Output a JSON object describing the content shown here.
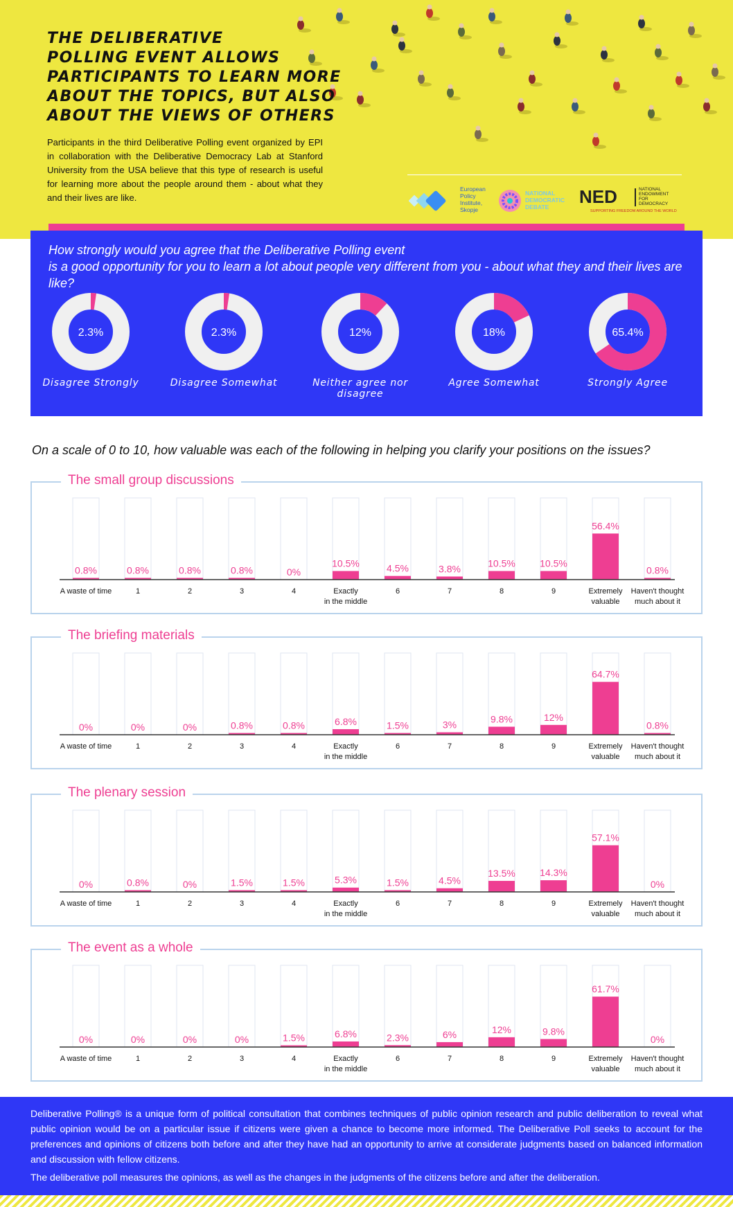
{
  "header": {
    "title_lines": [
      "THE DELIBERATIVE",
      "POLLING EVENT ALLOWS",
      "PARTICIPANTS TO LEARN MORE",
      "ABOUT THE TOPICS, BUT ALSO",
      "ABOUT THE VIEWS OF OTHERS"
    ],
    "intro": "Participants in the third Deliberative Polling event organized by EPI in collaboration with the Deliberative Democracy Lab at Stanford University from the USA believe that this type of research is useful for learning more about the people around them - about what they and their lives are like."
  },
  "logos": {
    "epi": "European\nPolicy\nInstitute,\nSkopje",
    "nd": "NATIONAL\nDEMOCRATIC\nDEBATE",
    "ned_mark": "NED",
    "ned_text": "NATIONAL\nENDOWMENT\nFOR\nDEMOCRACY",
    "ned_tagline": "SUPPORTING FREEDOM AROUND THE WORLD"
  },
  "colors": {
    "blue": "#2f37f6",
    "pink": "#ee3e92",
    "yellow": "#eee740",
    "light": "#f0f0f0"
  },
  "question1": {
    "title": "How strongly would you agree that the Deliberative Polling event\nis a good opportunity for you to learn a lot about people very different from you - about what they and their lives are like?",
    "items": [
      {
        "label": "Disagree Strongly",
        "display": "2.3%",
        "value": 2.3
      },
      {
        "label": "Disagree Somewhat",
        "display": "2.3%",
        "value": 2.3
      },
      {
        "label": "Neither agree nor disagree",
        "display": "12%",
        "value": 12
      },
      {
        "label": "Agree Somewhat",
        "display": "18%",
        "value": 18
      },
      {
        "label": "Strongly Agree",
        "display": "65.4%",
        "value": 65.4
      }
    ]
  },
  "question2": {
    "title": "On a scale of 0 to 10, how valuable was each of the following in helping you clarify your positions on the issues?"
  },
  "chart_data": [
    {
      "type": "bar",
      "title": "The small group discussions",
      "categories": [
        "A waste of time",
        "1",
        "2",
        "3",
        "4",
        "Exactly\nin the middle",
        "6",
        "7",
        "8",
        "9",
        "Extremely\nvaluable",
        "Haven't thought\nmuch about it"
      ],
      "values": [
        0.8,
        0.8,
        0.8,
        0.8,
        0,
        10.5,
        4.5,
        3.8,
        10.5,
        10.5,
        56.4,
        0.8
      ],
      "labels": [
        "0.8%",
        "0.8%",
        "0.8%",
        "0.8%",
        "0%",
        "10.5%",
        "4.5%",
        "3.8%",
        "10.5%",
        "10.5%",
        "56.4%",
        "0.8%"
      ],
      "ylim": [
        0,
        100
      ]
    },
    {
      "type": "bar",
      "title": "The briefing materials",
      "categories": [
        "A waste of time",
        "1",
        "2",
        "3",
        "4",
        "Exactly\nin the middle",
        "6",
        "7",
        "8",
        "9",
        "Extremely\nvaluable",
        "Haven't thought\nmuch about it"
      ],
      "values": [
        0,
        0,
        0,
        0.8,
        0.8,
        6.8,
        1.5,
        3,
        9.8,
        12,
        64.7,
        0.8
      ],
      "labels": [
        "0%",
        "0%",
        "0%",
        "0.8%",
        "0.8%",
        "6.8%",
        "1.5%",
        "3%",
        "9.8%",
        "12%",
        "64.7%",
        "0.8%"
      ],
      "ylim": [
        0,
        100
      ]
    },
    {
      "type": "bar",
      "title": "The plenary session",
      "categories": [
        "A waste of time",
        "1",
        "2",
        "3",
        "4",
        "Exactly\nin the middle",
        "6",
        "7",
        "8",
        "9",
        "Extremely\nvaluable",
        "Haven't thought\nmuch about it"
      ],
      "values": [
        0,
        0.8,
        0,
        1.5,
        1.5,
        5.3,
        1.5,
        4.5,
        13.5,
        14.3,
        57.1,
        0
      ],
      "labels": [
        "0%",
        "0.8%",
        "0%",
        "1.5%",
        "1.5%",
        "5.3%",
        "1.5%",
        "4.5%",
        "13.5%",
        "14.3%",
        "57.1%",
        "0%"
      ],
      "ylim": [
        0,
        100
      ]
    },
    {
      "type": "bar",
      "title": "The event as a whole",
      "categories": [
        "A waste of time",
        "1",
        "2",
        "3",
        "4",
        "Exactly\nin the middle",
        "6",
        "7",
        "8",
        "9",
        "Extremely\nvaluable",
        "Haven't thought\nmuch about it"
      ],
      "values": [
        0,
        0,
        0,
        0,
        1.5,
        6.8,
        2.3,
        6,
        12,
        9.8,
        61.7,
        0
      ],
      "labels": [
        "0%",
        "0%",
        "0%",
        "0%",
        "1.5%",
        "6.8%",
        "2.3%",
        "6%",
        "12%",
        "9.8%",
        "61.7%",
        "0%"
      ],
      "ylim": [
        0,
        100
      ]
    }
  ],
  "footer": {
    "paragraph1": "Deliberative Polling® is a unique form of political consultation that combines techniques of public opinion research and public deliberation to reveal what public opinion would be on a particular issue if citizens were given a chance to become more informed. The Deliberative Poll seeks to account for the preferences and opinions of citizens both before and after they have had an opportunity to arrive at considerate judgments based on balanced information and discussion with fellow citizens.",
    "paragraph2": "The deliberative poll measures the opinions, as well as the changes in the judgments of the citizens before and after the deliberation."
  }
}
